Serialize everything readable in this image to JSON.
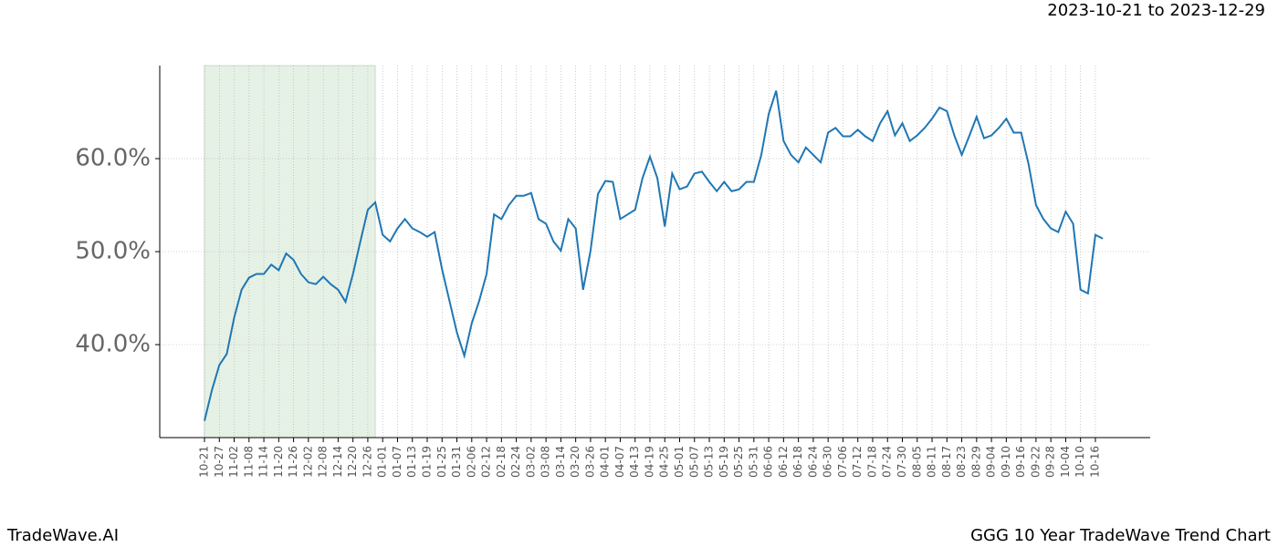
{
  "header": {
    "date_range": "2023-10-21 to 2023-12-29"
  },
  "footer": {
    "brand": "TradeWave.AI",
    "chart_name": "GGG 10 Year TradeWave Trend Chart"
  },
  "chart_data": {
    "type": "line",
    "color": "#1f77b4",
    "shade_color": "#e6f1e6",
    "shade": [
      0,
      23
    ],
    "grid": true,
    "categories": [
      "10-21",
      null,
      "10-27",
      null,
      "11-02",
      null,
      "11-08",
      null,
      "11-14",
      null,
      "11-20",
      null,
      "11-26",
      null,
      "12-02",
      null,
      "12-08",
      null,
      "12-14",
      null,
      "12-20",
      null,
      "12-26",
      null,
      "01-01",
      null,
      "01-07",
      null,
      "01-13",
      null,
      "01-19",
      null,
      "01-25",
      null,
      "01-31",
      null,
      "02-06",
      null,
      "02-12",
      null,
      "02-18",
      null,
      "02-24",
      null,
      "03-02",
      null,
      "03-08",
      null,
      "03-14",
      null,
      "03-20",
      null,
      "03-26",
      null,
      "04-01",
      null,
      "04-07",
      null,
      "04-13",
      null,
      "04-19",
      null,
      "04-25",
      null,
      "05-01",
      null,
      "05-07",
      null,
      "05-13",
      null,
      "05-19",
      null,
      "05-25",
      null,
      "05-31",
      null,
      "06-06",
      null,
      "06-12",
      null,
      "06-18",
      null,
      "06-24",
      null,
      "06-30",
      null,
      "07-06",
      null,
      "07-12",
      null,
      "07-18",
      null,
      "07-24",
      null,
      "07-30",
      null,
      "08-05",
      null,
      "08-11",
      null,
      "08-17",
      null,
      "08-23",
      null,
      "08-29",
      null,
      "09-04",
      null,
      "09-10",
      null,
      "09-16",
      null,
      "09-22",
      null,
      "09-28",
      null,
      "10-04",
      null,
      "10-10",
      null,
      "10-16",
      null
    ],
    "values": [
      31.8,
      35.1,
      37.8,
      39.0,
      42.9,
      45.9,
      47.2,
      47.6,
      47.6,
      48.6,
      48.0,
      49.8,
      49.1,
      47.6,
      46.7,
      46.5,
      47.3,
      46.5,
      45.9,
      44.6,
      47.6,
      51.1,
      54.5,
      55.3,
      51.8,
      51.1,
      52.5,
      53.5,
      52.5,
      52.1,
      51.6,
      52.1,
      48.1,
      44.7,
      41.3,
      38.8,
      42.3,
      44.7,
      47.6,
      54.0,
      53.5,
      55.0,
      56.0,
      56.0,
      56.3,
      53.5,
      53.0,
      51.1,
      50.1,
      53.5,
      52.5,
      45.9,
      50.1,
      56.2,
      57.6,
      57.5,
      53.5,
      54.0,
      54.5,
      57.9,
      60.2,
      57.9,
      52.7,
      58.4,
      56.7,
      57.0,
      58.4,
      58.6,
      57.5,
      56.5,
      57.5,
      56.5,
      56.7,
      57.5,
      57.5,
      60.4,
      64.8,
      67.3,
      61.9,
      60.4,
      59.6,
      61.2,
      60.4,
      59.6,
      62.8,
      63.3,
      62.4,
      62.4,
      63.1,
      62.4,
      61.9,
      63.8,
      65.1,
      62.5,
      63.8,
      61.9,
      62.5,
      63.3,
      64.3,
      65.5,
      65.1,
      62.5,
      60.4,
      62.4,
      64.5,
      62.2,
      62.5,
      63.3,
      64.3,
      62.8,
      62.8,
      59.4,
      55.0,
      53.5,
      52.5,
      52.1,
      54.3,
      53.0,
      45.9,
      45.5,
      51.8,
      51.4
    ],
    "ylim": [
      30,
      70
    ],
    "yticks": [
      {
        "value": 40,
        "label": "40.0%"
      },
      {
        "value": 50,
        "label": "50.0%"
      },
      {
        "value": 60,
        "label": "60.0%"
      }
    ]
  }
}
